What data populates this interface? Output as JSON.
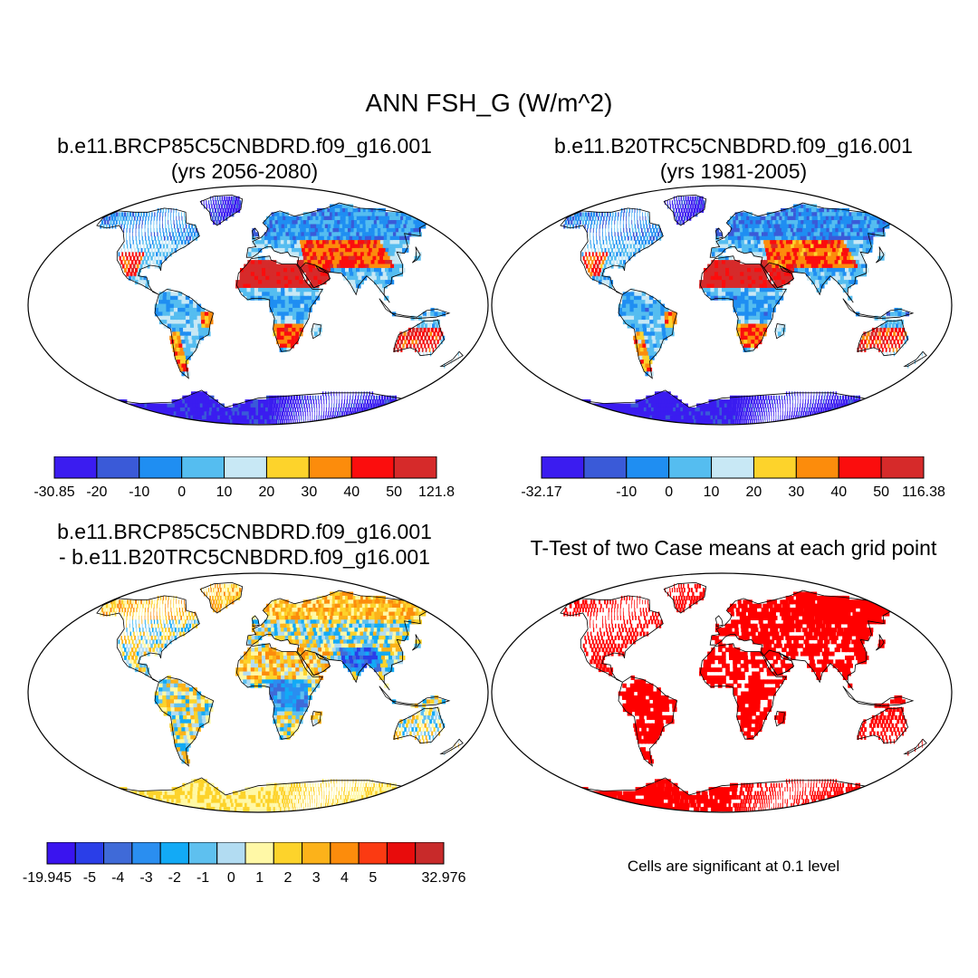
{
  "title": "ANN FSH_G (W/m^2)",
  "panels": [
    {
      "title_line1": "b.e11.BRCP85C5CNBDRD.f09_g16.001",
      "title_line2": "(yrs 2056-2080)",
      "colorbar": {
        "colors": [
          "#3b1cf0",
          "#3a5ad8",
          "#1f8ef2",
          "#55bdf0",
          "#c8e8f5",
          "#fdd32b",
          "#fc8c0c",
          "#fb0d0d",
          "#d62a2a"
        ],
        "labels": [
          "-30.85",
          "-20",
          "-10",
          "0",
          "10",
          "20",
          "30",
          "40",
          "50",
          "121.8"
        ]
      }
    },
    {
      "title_line1": "b.e11.B20TRC5CNBDRD.f09_g16.001",
      "title_line2": "(yrs 1981-2005)",
      "colorbar": {
        "colors": [
          "#3b1cf0",
          "#3a5ad8",
          "#1f8ef2",
          "#55bdf0",
          "#c8e8f5",
          "#fdd32b",
          "#fc8c0c",
          "#fb0d0d",
          "#d62a2a"
        ],
        "labels": [
          "-32.17",
          "",
          "-10",
          "0",
          "10",
          "20",
          "30",
          "40",
          "50",
          "116.38"
        ]
      }
    },
    {
      "title_line1": "b.e11.BRCP85C5CNBDRD.f09_g16.001",
      "title_line2": "- b.e11.B20TRC5CNBDRD.f09_g16.001",
      "colorbar": {
        "colors": [
          "#3a14ef",
          "#2a3ee8",
          "#3f6ad8",
          "#2a8ef0",
          "#12aaf6",
          "#5ec0ef",
          "#b2dcf2",
          "#fff8a6",
          "#fdd32b",
          "#fcb21a",
          "#fc8c0c",
          "#fb3a12",
          "#e80c0c",
          "#c82a2a"
        ],
        "labels": [
          "-19.945",
          "-5",
          "-4",
          "-3",
          "-2",
          "-1",
          "0",
          "1",
          "2",
          "3",
          "4",
          "5",
          "",
          "32.976"
        ]
      }
    },
    {
      "title_line1": "T-Test of two Case means at each grid point",
      "title_line2": ""
    }
  ],
  "note": "Cells are significant at 0.1 level"
}
